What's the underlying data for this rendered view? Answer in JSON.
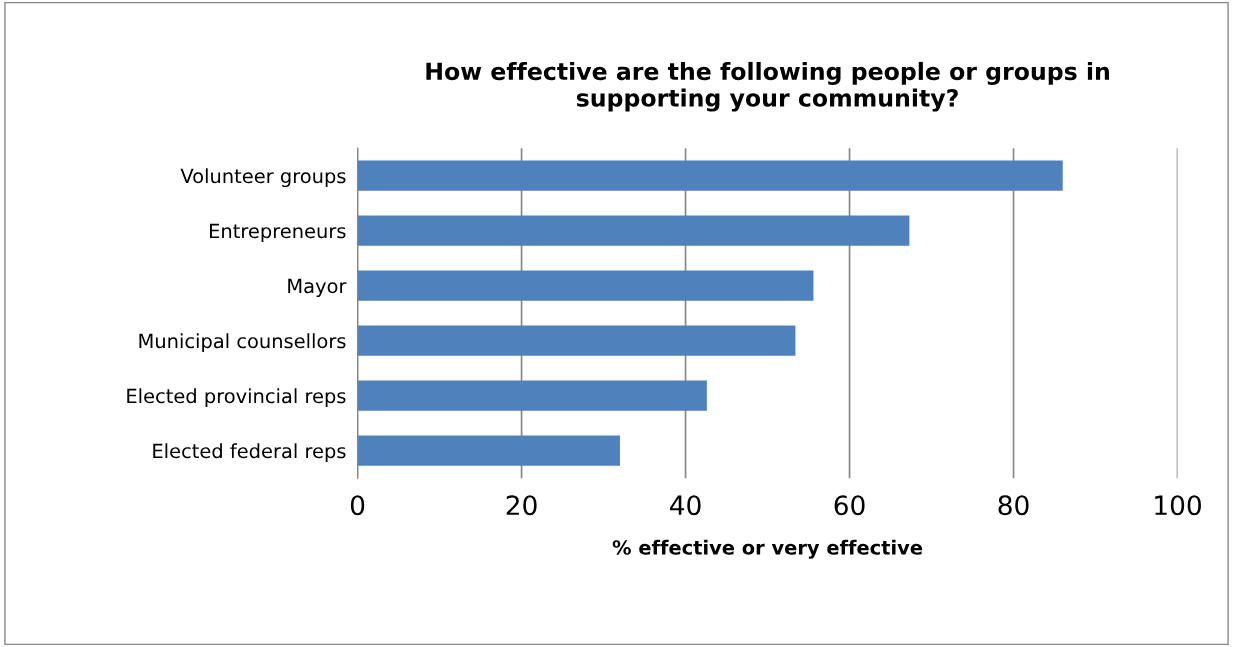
{
  "chart_data": {
    "type": "bar",
    "orientation": "horizontal",
    "title": "How effective are the following people or groups in\nsupporting your community?",
    "xlabel": "% effective or very effective",
    "categories": [
      "Volunteer groups",
      "Entrepreneurs",
      "Mayor",
      "Municipal counsellors",
      "Elected provincial reps",
      "Elected federal reps"
    ],
    "values": [
      86,
      67.3,
      55.6,
      53.4,
      42.6,
      32.0
    ],
    "color": "#4f81bd",
    "xlim": [
      0,
      100
    ],
    "xticks": [
      0,
      20,
      40,
      60,
      80,
      100
    ],
    "grid": "x",
    "legend": false
  }
}
